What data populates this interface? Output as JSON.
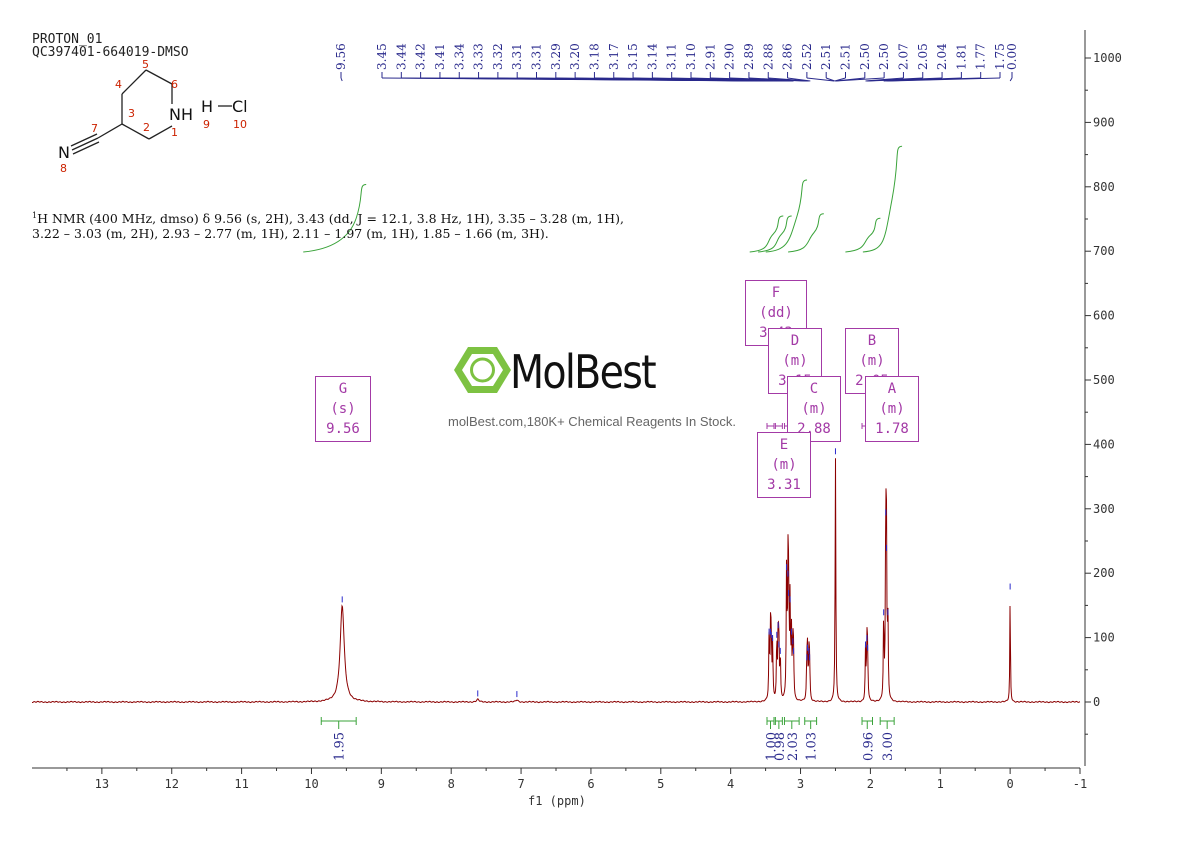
{
  "header": {
    "line1": "PROTON_01",
    "line2": "QC397401-664019-DMSO"
  },
  "description": {
    "superscript": "1",
    "line1": "H NMR (400 MHz, dmso) δ 9.56 (s, 2H), 3.43 (dd, J = 12.1, 3.8 Hz, 1H), 3.35 – 3.28 (m, 1H),",
    "line2": "3.22 – 3.03 (m, 2H), 2.93 – 2.77 (m, 1H), 2.11 – 1.97 (m, 1H), 1.85 – 1.66 (m, 3H)."
  },
  "watermark": {
    "name": "MolBest",
    "tagline": "molBest.com,180K+ Chemical Reagents In Stock."
  },
  "structure": {
    "atom_numbers": [
      "1",
      "2",
      "3",
      "4",
      "5",
      "6",
      "7",
      "8",
      "9",
      "10"
    ],
    "labels": {
      "nh": "NH",
      "n": "N",
      "h": "H",
      "cl": "Cl"
    }
  },
  "multiplets": [
    {
      "letter": "F",
      "type": "dd",
      "shift": "3.43"
    },
    {
      "letter": "D",
      "type": "m",
      "shift": "3.15"
    },
    {
      "letter": "B",
      "type": "m",
      "shift": "2.05"
    },
    {
      "letter": "C",
      "type": "m",
      "shift": "2.88"
    },
    {
      "letter": "A",
      "type": "m",
      "shift": "1.78"
    },
    {
      "letter": "G",
      "type": "s",
      "shift": "9.56"
    },
    {
      "letter": "E",
      "type": "m",
      "shift": "3.31"
    }
  ],
  "chart_data": {
    "type": "line",
    "xlabel": "f1 (ppm)",
    "xlim": [
      14,
      -1
    ],
    "ylim": [
      -100,
      1050
    ],
    "x_ticks": [
      "13",
      "12",
      "11",
      "10",
      "9",
      "8",
      "7",
      "6",
      "5",
      "4",
      "3",
      "2",
      "1",
      "0",
      "-1"
    ],
    "y_ticks": [
      "0",
      "100",
      "200",
      "300",
      "400",
      "500",
      "600",
      "700",
      "800",
      "900",
      "1000"
    ],
    "peak_labels": {
      "left": [
        "9.56"
      ],
      "cluster": [
        "3.45",
        "3.44",
        "3.42",
        "3.41",
        "3.34",
        "3.33",
        "3.32",
        "3.31",
        "3.31",
        "3.29",
        "3.20",
        "3.18",
        "3.17",
        "3.15",
        "3.14",
        "3.11",
        "3.10",
        "2.91",
        "2.90",
        "2.89",
        "2.88",
        "2.86",
        "2.52",
        "2.51",
        "2.51",
        "2.50",
        "2.50",
        "2.07",
        "2.05",
        "2.04",
        "1.81",
        "1.77",
        "1.75"
      ],
      "right": [
        "0.00"
      ]
    },
    "integrals": [
      {
        "from": 9.86,
        "to": 9.36,
        "value": "1.95"
      },
      {
        "from": 3.48,
        "to": 3.38,
        "value": "1.00"
      },
      {
        "from": 3.36,
        "to": 3.26,
        "value": "0.98"
      },
      {
        "from": 3.23,
        "to": 3.02,
        "value": "2.03"
      },
      {
        "from": 2.94,
        "to": 2.77,
        "value": "1.03"
      },
      {
        "from": 2.12,
        "to": 1.97,
        "value": "0.96"
      },
      {
        "from": 1.86,
        "to": 1.66,
        "value": "3.00"
      }
    ],
    "peaks": [
      {
        "ppm": 9.56,
        "height": 150,
        "width": 0.035
      },
      {
        "ppm": 7.62,
        "height": 4,
        "width": 0.02
      },
      {
        "ppm": 7.06,
        "height": 3,
        "width": 0.02
      },
      {
        "ppm": 3.45,
        "height": 100,
        "width": 0.006
      },
      {
        "ppm": 3.43,
        "height": 100,
        "width": 0.006
      },
      {
        "ppm": 3.42,
        "height": 95,
        "width": 0.006
      },
      {
        "ppm": 3.4,
        "height": 90,
        "width": 0.006
      },
      {
        "ppm": 3.34,
        "height": 95,
        "width": 0.006
      },
      {
        "ppm": 3.32,
        "height": 110,
        "width": 0.006
      },
      {
        "ppm": 3.31,
        "height": 80,
        "width": 0.006
      },
      {
        "ppm": 3.29,
        "height": 70,
        "width": 0.006
      },
      {
        "ppm": 3.2,
        "height": 200,
        "width": 0.006
      },
      {
        "ppm": 3.18,
        "height": 190,
        "width": 0.006
      },
      {
        "ppm": 3.17,
        "height": 160,
        "width": 0.006
      },
      {
        "ppm": 3.15,
        "height": 150,
        "width": 0.006
      },
      {
        "ppm": 3.13,
        "height": 100,
        "width": 0.006
      },
      {
        "ppm": 3.11,
        "height": 85,
        "width": 0.006
      },
      {
        "ppm": 3.1,
        "height": 70,
        "width": 0.006
      },
      {
        "ppm": 2.91,
        "height": 60,
        "width": 0.006
      },
      {
        "ppm": 2.9,
        "height": 75,
        "width": 0.006
      },
      {
        "ppm": 2.88,
        "height": 70,
        "width": 0.006
      },
      {
        "ppm": 2.87,
        "height": 60,
        "width": 0.006
      },
      {
        "ppm": 2.5,
        "height": 380,
        "width": 0.006
      },
      {
        "ppm": 2.07,
        "height": 80,
        "width": 0.006
      },
      {
        "ppm": 2.05,
        "height": 90,
        "width": 0.006
      },
      {
        "ppm": 2.04,
        "height": 75,
        "width": 0.006
      },
      {
        "ppm": 1.81,
        "height": 130,
        "width": 0.006
      },
      {
        "ppm": 1.78,
        "height": 285,
        "width": 0.006
      },
      {
        "ppm": 1.77,
        "height": 230,
        "width": 0.006
      },
      {
        "ppm": 1.75,
        "height": 130,
        "width": 0.006
      },
      {
        "ppm": 0.0,
        "height": 170,
        "width": 0.005
      }
    ],
    "integral_curves": [
      {
        "from": 9.86,
        "to": 9.36,
        "rise": 150
      },
      {
        "from": 3.47,
        "to": 3.39,
        "rise": 80
      },
      {
        "from": 3.35,
        "to": 3.27,
        "rise": 80
      },
      {
        "from": 3.24,
        "to": 3.05,
        "rise": 160
      },
      {
        "from": 2.92,
        "to": 2.81,
        "rise": 85
      },
      {
        "from": 2.1,
        "to": 2.0,
        "rise": 75
      },
      {
        "from": 1.85,
        "to": 1.69,
        "rise": 235
      }
    ],
    "colors": {
      "spectrum": "#8b0000",
      "peak_label": "#2a2a8c",
      "integral": "#3aa33a",
      "multiplet": "#a33aa6",
      "axis": "#333333"
    }
  }
}
